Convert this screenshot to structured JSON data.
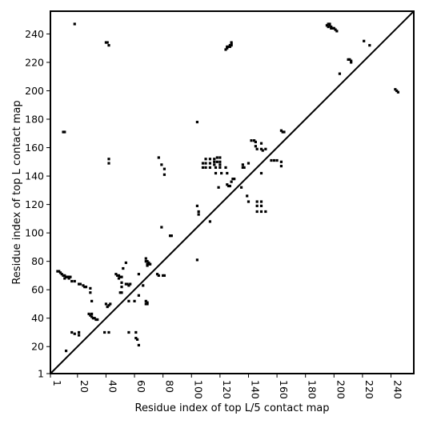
{
  "chart_data": {
    "type": "scatter",
    "title": "",
    "xlabel": "Residue index of top L/5 contact map",
    "ylabel": "Residue index of top L contact map",
    "xlim": [
      1,
      256
    ],
    "ylim": [
      1,
      256
    ],
    "x_ticks": [
      1,
      20,
      40,
      60,
      80,
      100,
      120,
      140,
      160,
      180,
      200,
      220,
      240
    ],
    "y_ticks": [
      1,
      20,
      40,
      60,
      80,
      100,
      120,
      140,
      160,
      180,
      200,
      220,
      240
    ],
    "grid": false,
    "marker": "square",
    "marker_color": "#000000",
    "diagonal_line": true,
    "upper_triangle_points": [
      [
        40,
        234
      ],
      [
        41,
        234
      ],
      [
        42,
        232
      ],
      [
        124,
        229
      ],
      [
        125,
        230
      ],
      [
        126,
        231
      ],
      [
        127,
        231
      ],
      [
        127,
        232
      ],
      [
        128,
        232
      ],
      [
        128,
        234
      ],
      [
        128,
        233
      ],
      [
        125,
        231
      ],
      [
        195,
        246
      ],
      [
        196,
        247
      ],
      [
        197,
        247
      ],
      [
        197,
        246
      ],
      [
        198,
        245
      ],
      [
        198,
        244
      ],
      [
        199,
        244
      ],
      [
        200,
        244
      ],
      [
        201,
        243
      ],
      [
        202,
        242
      ],
      [
        196,
        245
      ],
      [
        210,
        222
      ],
      [
        211,
        222
      ],
      [
        212,
        221
      ],
      [
        212,
        220
      ],
      [
        204,
        212
      ],
      [
        221,
        235
      ],
      [
        225,
        232
      ],
      [
        243,
        201
      ],
      [
        244,
        200
      ],
      [
        245,
        199
      ],
      [
        10,
        171
      ],
      [
        11,
        171
      ],
      [
        42,
        152
      ],
      [
        42,
        149
      ],
      [
        104,
        178
      ],
      [
        163,
        172
      ],
      [
        164,
        171
      ],
      [
        165,
        171
      ]
    ],
    "lower_triangle_points": [
      [
        18,
        247
      ],
      [
        6,
        73
      ],
      [
        7,
        73
      ],
      [
        8,
        72
      ],
      [
        9,
        71
      ],
      [
        10,
        70
      ],
      [
        11,
        70
      ],
      [
        11,
        68
      ],
      [
        12,
        69
      ],
      [
        13,
        69
      ],
      [
        14,
        69
      ],
      [
        14,
        68
      ],
      [
        15,
        69
      ],
      [
        16,
        66
      ],
      [
        18,
        66
      ],
      [
        21,
        64
      ],
      [
        22,
        64
      ],
      [
        24,
        63
      ],
      [
        25,
        62
      ],
      [
        26,
        62
      ],
      [
        29,
        61
      ],
      [
        29,
        58
      ],
      [
        30,
        52
      ],
      [
        28,
        43
      ],
      [
        29,
        42
      ],
      [
        30,
        43
      ],
      [
        30,
        41
      ],
      [
        31,
        40
      ],
      [
        32,
        40
      ],
      [
        33,
        39
      ],
      [
        34,
        39
      ],
      [
        40,
        50
      ],
      [
        41,
        48
      ],
      [
        42,
        49
      ],
      [
        43,
        50
      ],
      [
        16,
        30
      ],
      [
        18,
        29
      ],
      [
        21,
        30
      ],
      [
        21,
        28
      ],
      [
        39,
        30
      ],
      [
        42,
        30
      ],
      [
        56,
        30
      ],
      [
        61,
        30
      ],
      [
        61,
        26
      ],
      [
        62,
        25
      ],
      [
        63,
        21
      ],
      [
        12,
        17
      ],
      [
        47,
        71
      ],
      [
        48,
        70
      ],
      [
        49,
        70
      ],
      [
        50,
        69
      ],
      [
        51,
        69
      ],
      [
        49,
        68
      ],
      [
        51,
        65
      ],
      [
        51,
        62
      ],
      [
        50,
        58
      ],
      [
        51,
        58
      ],
      [
        52,
        75
      ],
      [
        54,
        79
      ],
      [
        54,
        64
      ],
      [
        55,
        64
      ],
      [
        56,
        63
      ],
      [
        57,
        64
      ],
      [
        56,
        52
      ],
      [
        60,
        52
      ],
      [
        63,
        71
      ],
      [
        63,
        56
      ],
      [
        66,
        63
      ],
      [
        68,
        82
      ],
      [
        68,
        80
      ],
      [
        69,
        80
      ],
      [
        70,
        79
      ],
      [
        71,
        78
      ],
      [
        69,
        78
      ],
      [
        69,
        77
      ],
      [
        70,
        78
      ],
      [
        68,
        52
      ],
      [
        69,
        50
      ],
      [
        68,
        50
      ],
      [
        69,
        51
      ],
      [
        76,
        71
      ],
      [
        77,
        70
      ],
      [
        80,
        70
      ],
      [
        81,
        70
      ],
      [
        79,
        104
      ],
      [
        85,
        98
      ],
      [
        86,
        98
      ],
      [
        77,
        153
      ],
      [
        79,
        148
      ],
      [
        81,
        145
      ],
      [
        81,
        141
      ],
      [
        104,
        81
      ],
      [
        104,
        119
      ],
      [
        105,
        115
      ],
      [
        105,
        113
      ],
      [
        113,
        108
      ],
      [
        108,
        149
      ],
      [
        108,
        146
      ],
      [
        110,
        152
      ],
      [
        110,
        149
      ],
      [
        110,
        146
      ],
      [
        113,
        152
      ],
      [
        113,
        149
      ],
      [
        113,
        146
      ],
      [
        116,
        152
      ],
      [
        116,
        150
      ],
      [
        116,
        148
      ],
      [
        117,
        146
      ],
      [
        117,
        142
      ],
      [
        118,
        153
      ],
      [
        118,
        150
      ],
      [
        119,
        132
      ],
      [
        120,
        153
      ],
      [
        120,
        150
      ],
      [
        120,
        148
      ],
      [
        120,
        146
      ],
      [
        121,
        142
      ],
      [
        124,
        146
      ],
      [
        125,
        142
      ],
      [
        125,
        134
      ],
      [
        126,
        133
      ],
      [
        127,
        133
      ],
      [
        128,
        136
      ],
      [
        129,
        138
      ],
      [
        130,
        138
      ],
      [
        135,
        132
      ],
      [
        136,
        148
      ],
      [
        136,
        146
      ],
      [
        137,
        146
      ],
      [
        139,
        126
      ],
      [
        140,
        149
      ],
      [
        140,
        122
      ],
      [
        142,
        165
      ],
      [
        144,
        165
      ],
      [
        145,
        164
      ],
      [
        145,
        161
      ],
      [
        146,
        159
      ],
      [
        149,
        163
      ],
      [
        149,
        159
      ],
      [
        150,
        158
      ],
      [
        152,
        159
      ],
      [
        146,
        122
      ],
      [
        146,
        119
      ],
      [
        146,
        115
      ],
      [
        149,
        122
      ],
      [
        149,
        119
      ],
      [
        149,
        115
      ],
      [
        152,
        115
      ],
      [
        149,
        142
      ],
      [
        156,
        151
      ],
      [
        158,
        151
      ],
      [
        163,
        150
      ],
      [
        163,
        147
      ],
      [
        160,
        151
      ]
    ]
  }
}
